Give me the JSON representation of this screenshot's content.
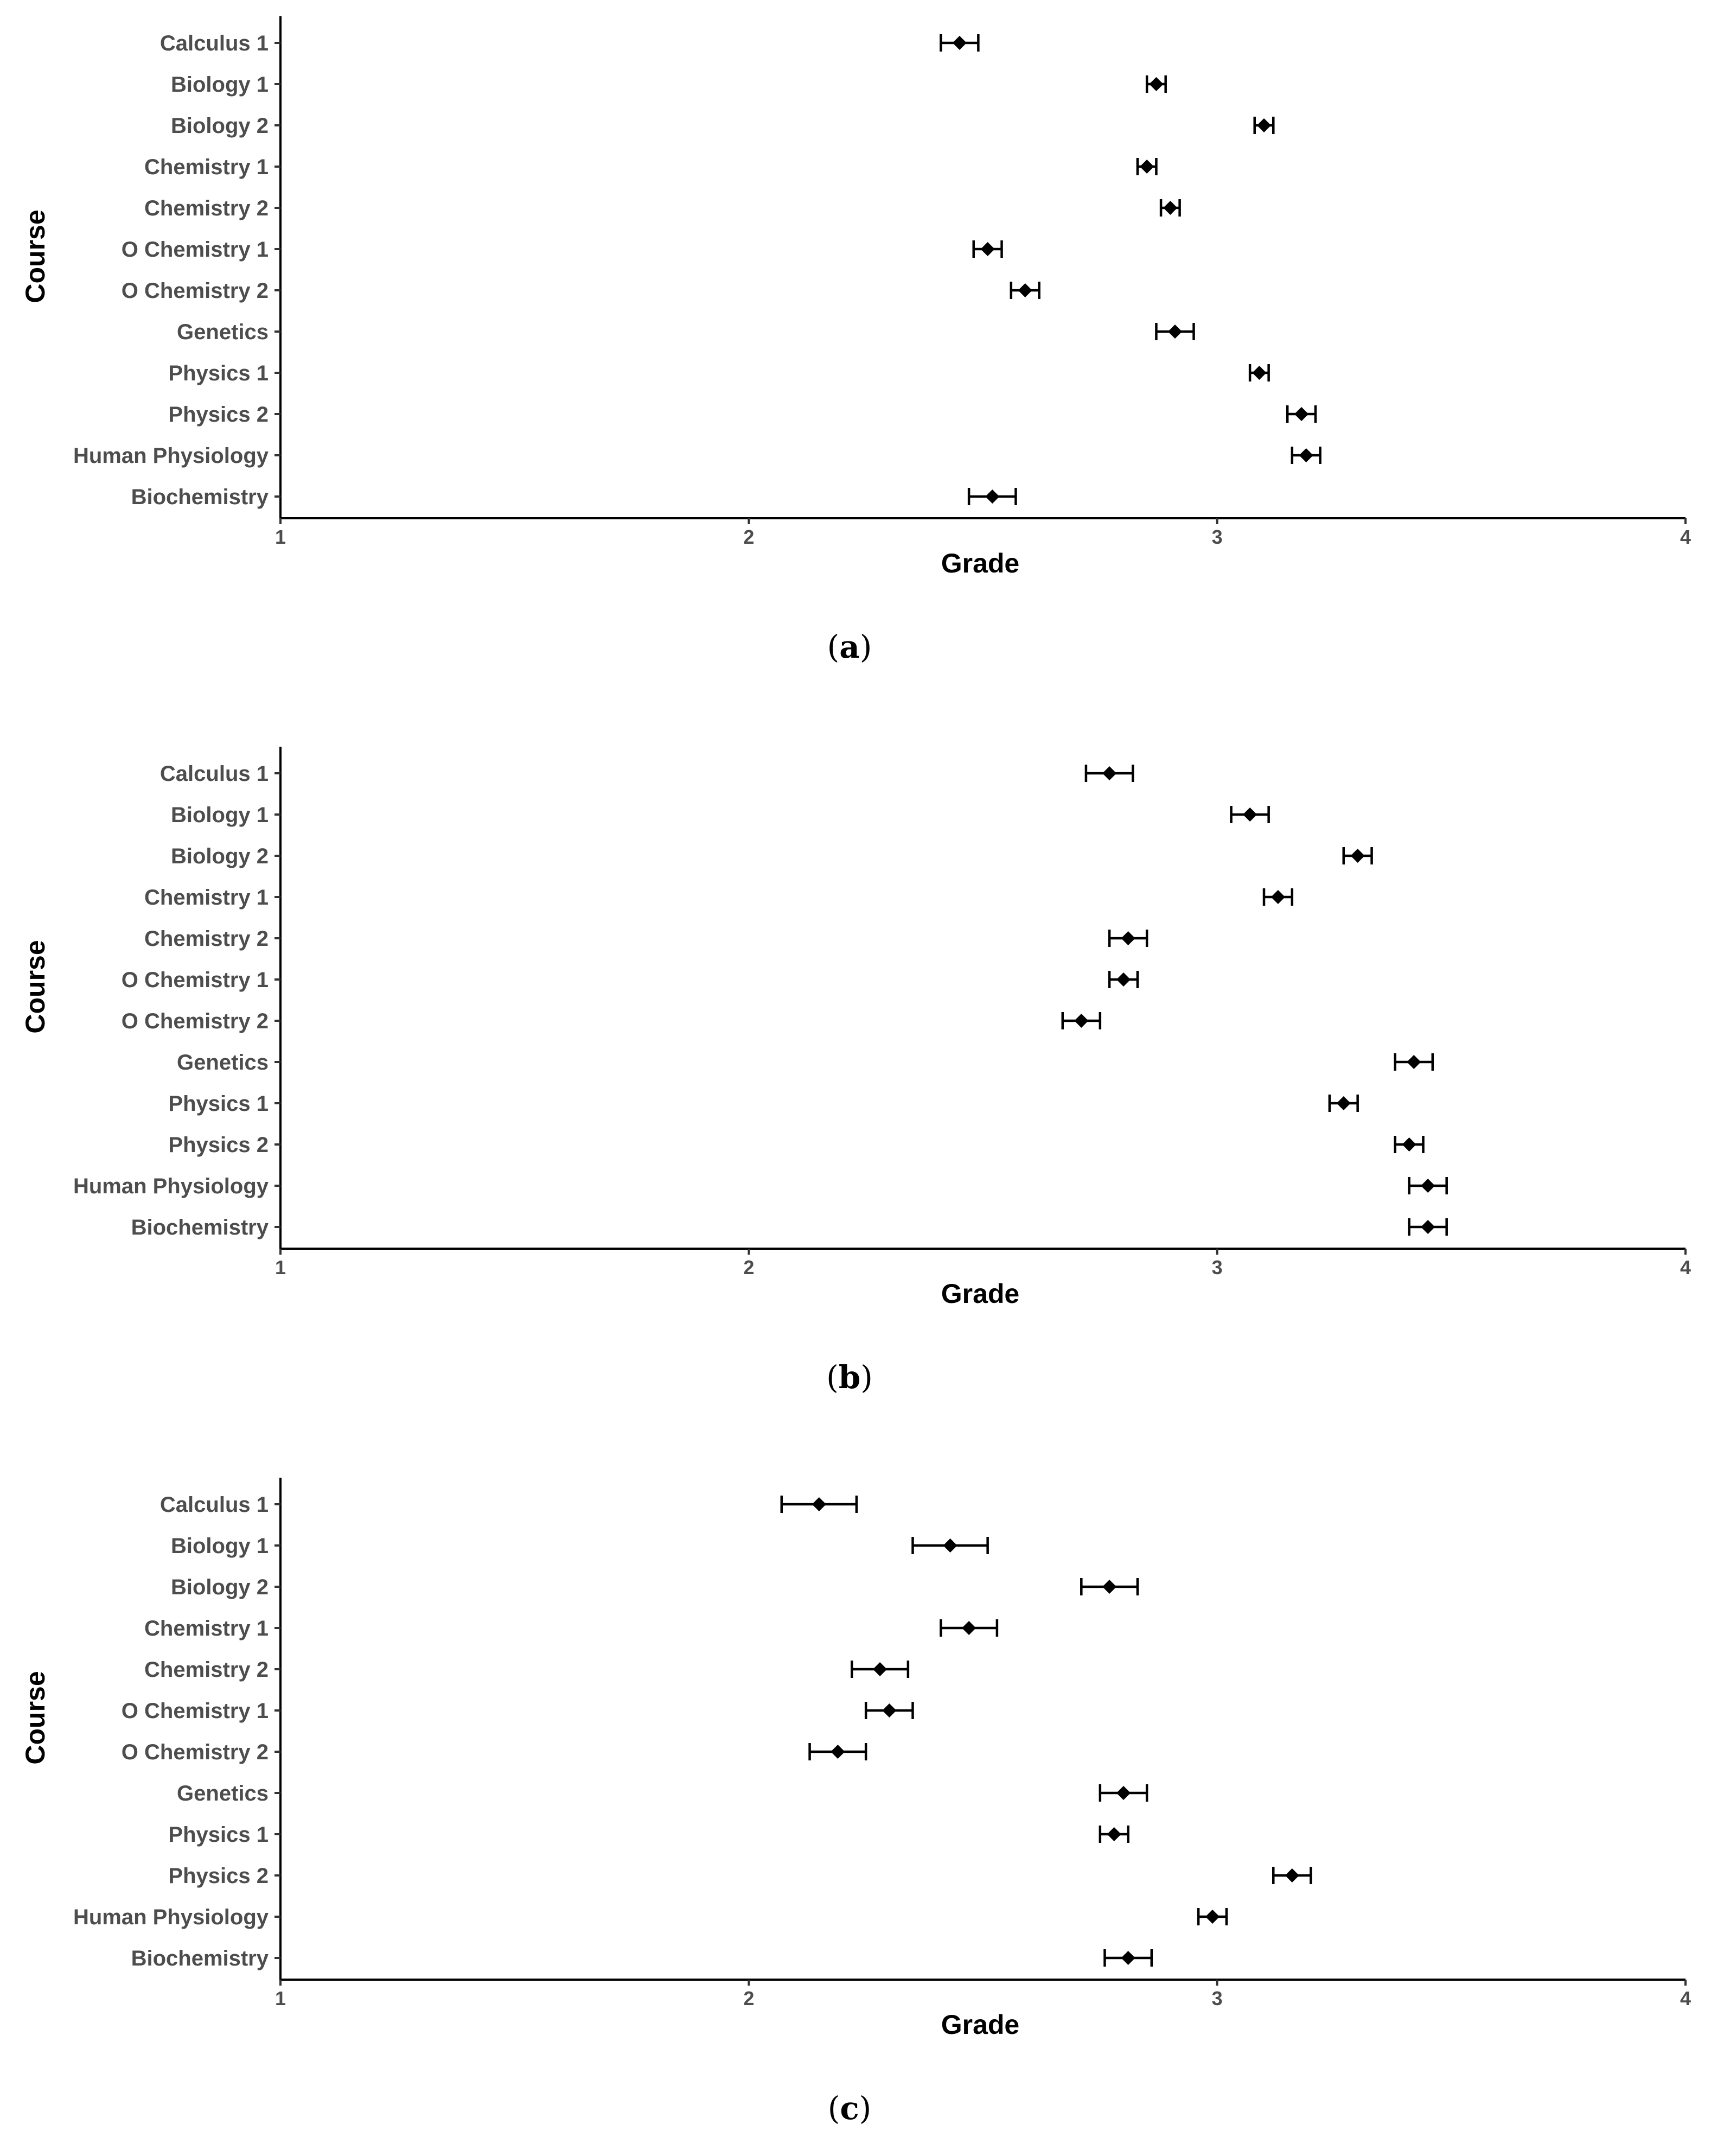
{
  "figure": {
    "panels": [
      {
        "label_open": "(",
        "label_letter": "a",
        "label_close": ")"
      },
      {
        "label_open": "(",
        "label_letter": "b",
        "label_close": ")"
      },
      {
        "label_open": "(",
        "label_letter": "c",
        "label_close": ")"
      }
    ]
  },
  "chart_data": [
    {
      "type": "scatter",
      "title": "",
      "xlabel": "Grade",
      "ylabel": "Course",
      "xlim": [
        1,
        4
      ],
      "xticks": [
        "1",
        "2",
        "3",
        "4"
      ],
      "categories": [
        "Calculus 1",
        "Biology 1",
        "Biology 2",
        "Chemistry 1",
        "Chemistry 2",
        "O Chemistry 1",
        "O Chemistry 2",
        "Genetics",
        "Physics 1",
        "Physics 2",
        "Human Physiology",
        "Biochemistry"
      ],
      "values": [
        2.45,
        2.87,
        3.1,
        2.85,
        2.9,
        2.51,
        2.59,
        2.91,
        3.09,
        3.18,
        3.19,
        2.52
      ],
      "lower": [
        2.41,
        2.85,
        3.08,
        2.83,
        2.88,
        2.48,
        2.56,
        2.87,
        3.07,
        3.15,
        3.16,
        2.47
      ],
      "upper": [
        2.49,
        2.89,
        3.12,
        2.87,
        2.92,
        2.54,
        2.62,
        2.95,
        3.11,
        3.21,
        3.22,
        2.57
      ]
    },
    {
      "type": "scatter",
      "title": "",
      "xlabel": "Grade",
      "ylabel": "Course",
      "xlim": [
        1,
        4
      ],
      "xticks": [
        "1",
        "2",
        "3",
        "4"
      ],
      "categories": [
        "Calculus 1",
        "Biology 1",
        "Biology 2",
        "Chemistry 1",
        "Chemistry 2",
        "O Chemistry 1",
        "O Chemistry 2",
        "Genetics",
        "Physics 1",
        "Physics 2",
        "Human Physiology",
        "Biochemistry"
      ],
      "values": [
        2.77,
        3.07,
        3.3,
        3.13,
        2.81,
        2.8,
        2.71,
        3.42,
        3.27,
        3.41,
        3.45,
        3.45
      ],
      "lower": [
        2.72,
        3.03,
        3.27,
        3.1,
        2.77,
        2.77,
        2.67,
        3.38,
        3.24,
        3.38,
        3.41,
        3.41
      ],
      "upper": [
        2.82,
        3.11,
        3.33,
        3.16,
        2.85,
        2.83,
        2.75,
        3.46,
        3.3,
        3.44,
        3.49,
        3.49
      ]
    },
    {
      "type": "scatter",
      "title": "",
      "xlabel": "Grade",
      "ylabel": "Course",
      "xlim": [
        1,
        4
      ],
      "xticks": [
        "1",
        "2",
        "3",
        "4"
      ],
      "categories": [
        "Calculus 1",
        "Biology 1",
        "Biology 2",
        "Chemistry 1",
        "Chemistry 2",
        "O Chemistry 1",
        "O Chemistry 2",
        "Genetics",
        "Physics 1",
        "Physics 2",
        "Human Physiology",
        "Biochemistry"
      ],
      "values": [
        2.15,
        2.43,
        2.77,
        2.47,
        2.28,
        2.3,
        2.19,
        2.8,
        2.78,
        3.16,
        2.99,
        2.81
      ],
      "lower": [
        2.07,
        2.35,
        2.71,
        2.41,
        2.22,
        2.25,
        2.13,
        2.75,
        2.75,
        3.12,
        2.96,
        2.76
      ],
      "upper": [
        2.23,
        2.51,
        2.83,
        2.53,
        2.34,
        2.35,
        2.25,
        2.85,
        2.81,
        3.2,
        3.02,
        2.86
      ]
    }
  ]
}
